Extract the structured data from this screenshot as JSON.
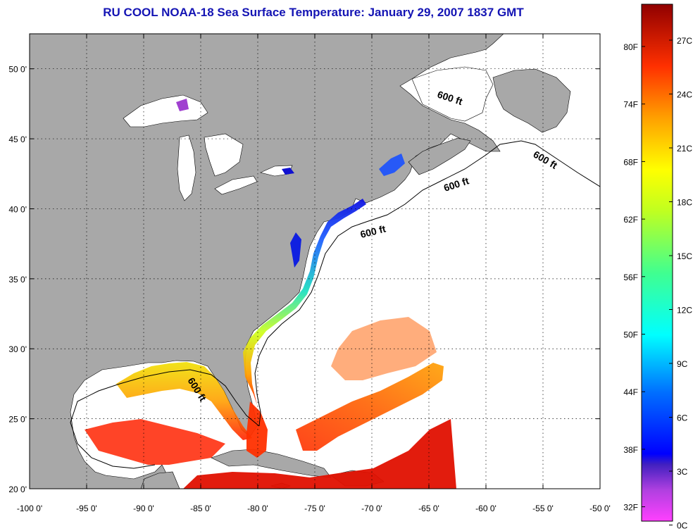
{
  "title": "RU COOL  NOAA-18  Sea Surface Temperature:  January 29, 2007 1837 GMT",
  "map": {
    "lon_range": [
      -100,
      -50
    ],
    "lat_range": [
      20,
      52.5
    ],
    "lon_ticks": [
      "-100 0'",
      "-95 0'",
      "-90 0'",
      "-85 0'",
      "-80 0'",
      "-75 0'",
      "-70 0'",
      "-65 0'",
      "-60 0'",
      "-55 0'",
      "-50 0'"
    ],
    "lat_ticks": [
      "20 0'",
      "25 0'",
      "30 0'",
      "35 0'",
      "40 0'",
      "45 0'",
      "50 0'"
    ],
    "grid": "dotted",
    "land_color": "#a8a8a8",
    "no_data_color": "#ffffff",
    "contour_labels": [
      "600 ft",
      "600 ft",
      "600 ft",
      "600 ft",
      "600 ft"
    ]
  },
  "colorbar": {
    "f_labels": [
      "80F",
      "74F",
      "68F",
      "62F",
      "56F",
      "50F",
      "44F",
      "38F",
      "32F"
    ],
    "c_labels": [
      "27C",
      "24C",
      "21C",
      "18C",
      "15C",
      "12C",
      "9C",
      "6C",
      "3C",
      "0C"
    ]
  }
}
